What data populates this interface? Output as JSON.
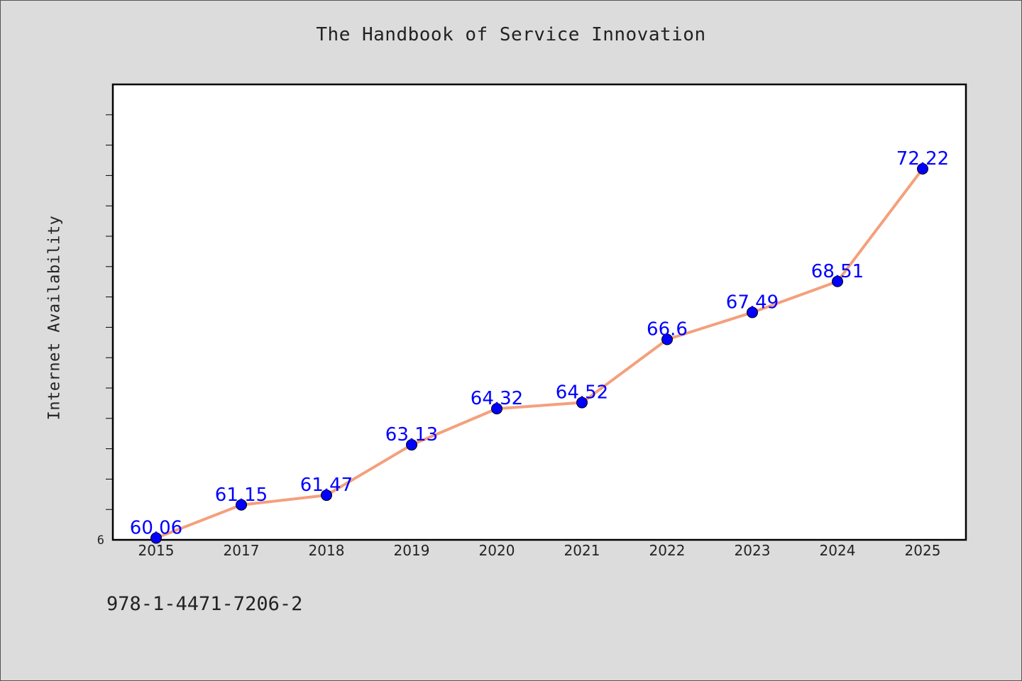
{
  "chart_data": {
    "type": "line",
    "title": "The Handbook of Service Innovation",
    "xlabel": "",
    "ylabel": "Internet Availability",
    "categories": [
      "2015",
      "2017",
      "2018",
      "2019",
      "2020",
      "2021",
      "2022",
      "2023",
      "2024",
      "2025"
    ],
    "values": [
      60.06,
      61.15,
      61.47,
      63.13,
      64.32,
      64.52,
      66.6,
      67.49,
      68.51,
      72.22
    ],
    "data_labels": [
      "60.06",
      "61.15",
      "61.47",
      "63.13",
      "64.32",
      "64.52",
      "66.6",
      "67.49",
      "68.51",
      "72.22"
    ],
    "ylim": [
      60,
      75
    ],
    "y_tick_label": "6",
    "grid": false,
    "legend": "none",
    "line_color": "#f4a07c",
    "marker_color": "#0000ff",
    "label_color": "#0000ff",
    "background_color": "#dcdcdc",
    "plot_background": "#ffffff"
  },
  "footer": {
    "isbn": "978-1-4471-7206-2"
  }
}
